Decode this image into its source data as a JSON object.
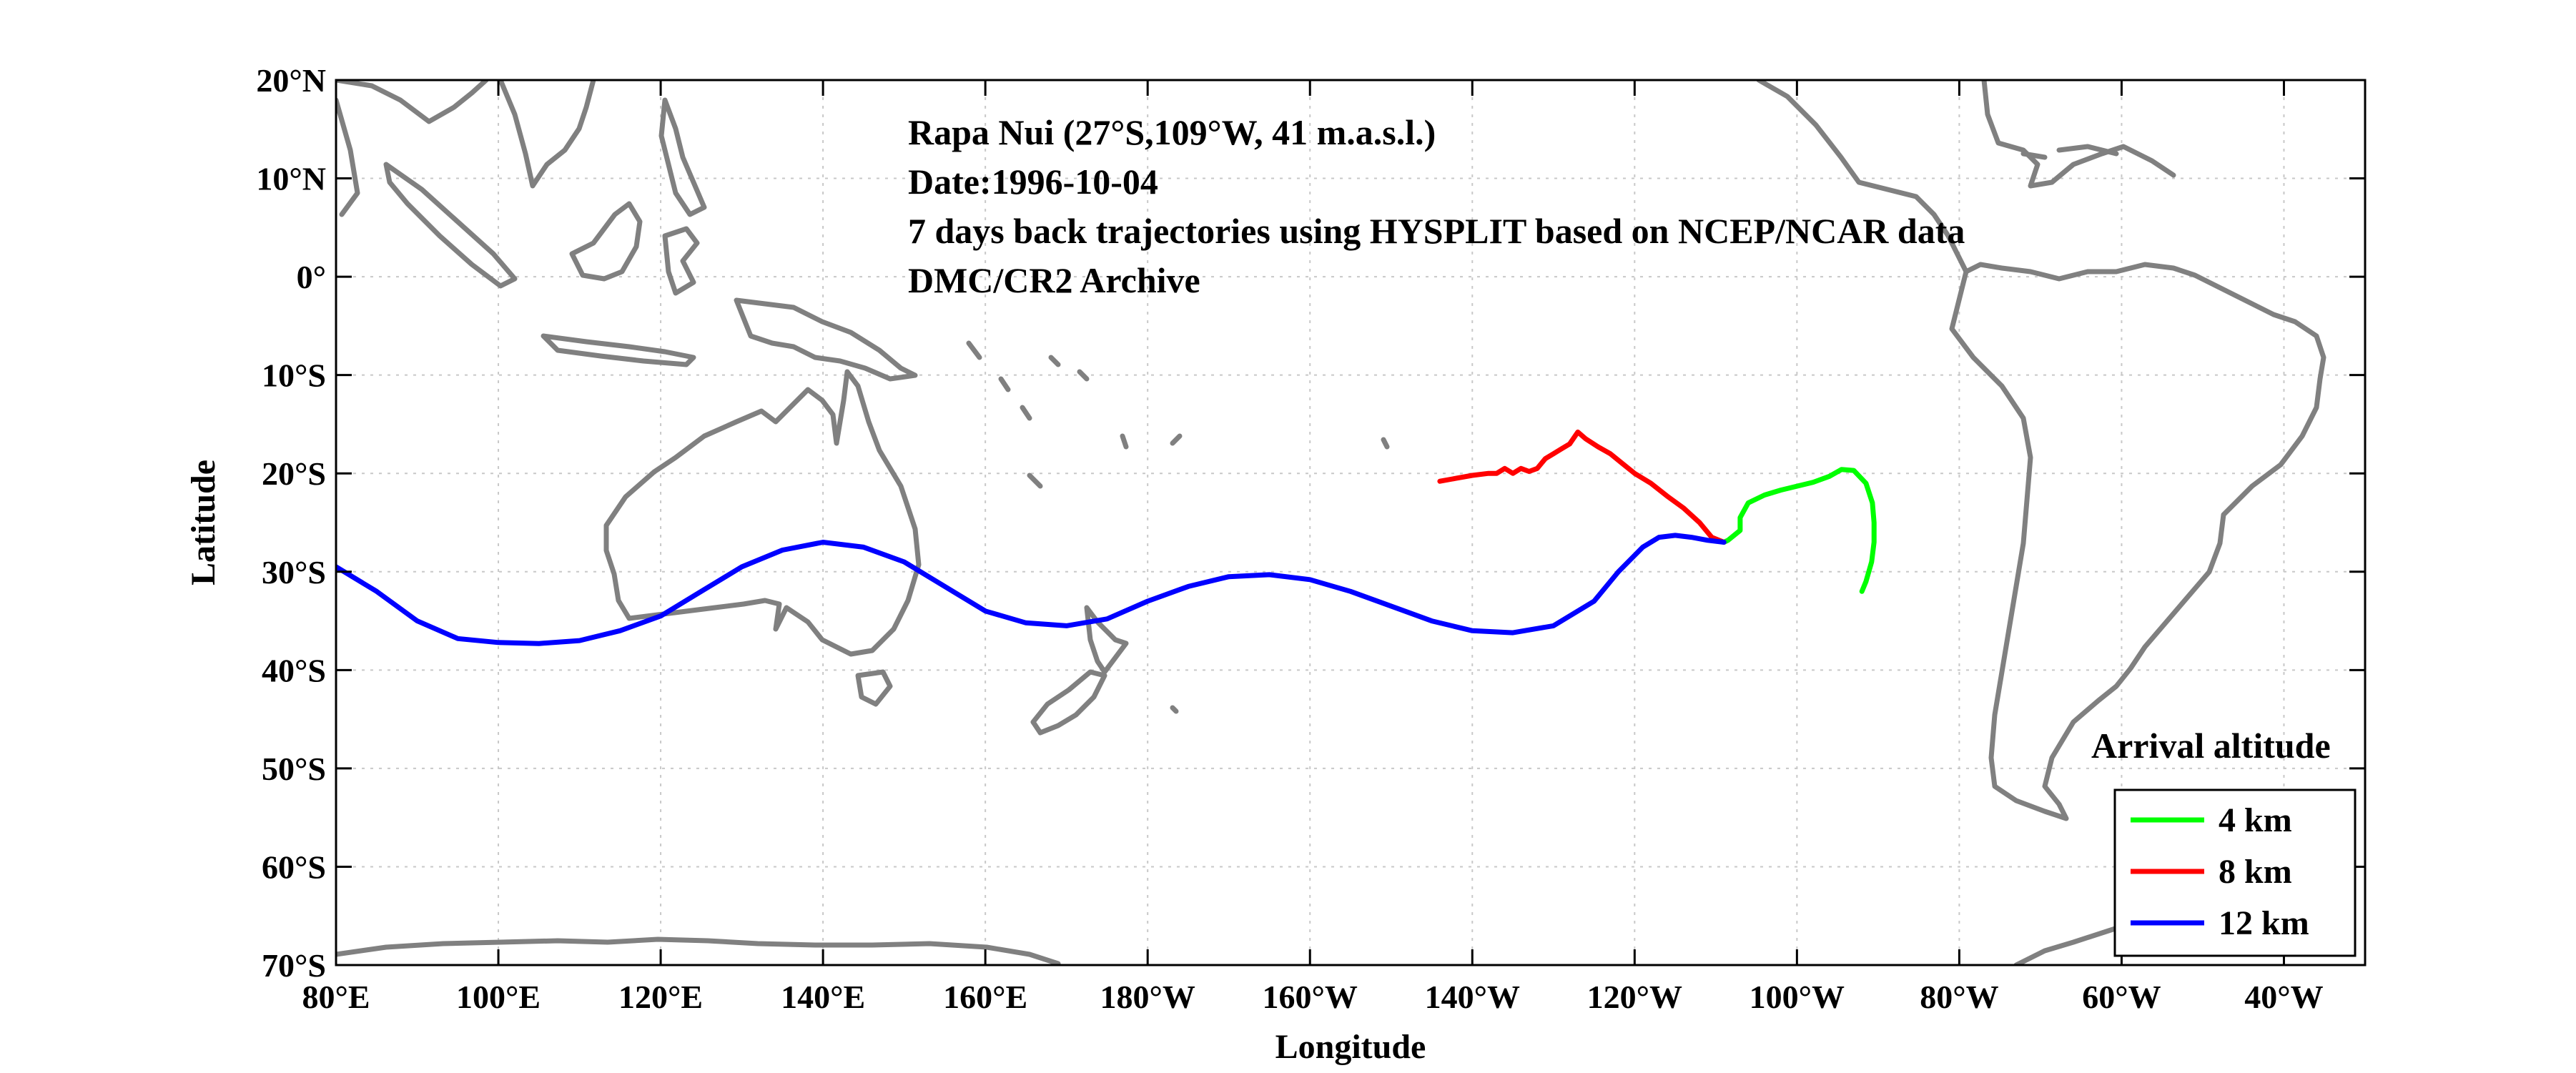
{
  "info": {
    "lines": [
      "Rapa Nui (27°S,109°W, 41 m.a.s.l.)",
      "Date:1996-10-04",
      "7 days back trajectories using HYSPLIT based on NCEP/NCAR data",
      "DMC/CR2 Archive"
    ]
  },
  "axes": {
    "xlabel": "Longitude",
    "ylabel": "Latitude",
    "x_ticks": [
      {
        "lon": 80,
        "label": "80°E"
      },
      {
        "lon": 100,
        "label": "100°E"
      },
      {
        "lon": 120,
        "label": "120°E"
      },
      {
        "lon": 140,
        "label": "140°E"
      },
      {
        "lon": 160,
        "label": "160°E"
      },
      {
        "lon": 180,
        "label": "180°W"
      },
      {
        "lon": 200,
        "label": "160°W"
      },
      {
        "lon": 220,
        "label": "140°W"
      },
      {
        "lon": 240,
        "label": "120°W"
      },
      {
        "lon": 260,
        "label": "100°W"
      },
      {
        "lon": 280,
        "label": "80°W"
      },
      {
        "lon": 300,
        "label": "60°W"
      },
      {
        "lon": 320,
        "label": "40°W"
      }
    ],
    "y_ticks": [
      {
        "lat": 20,
        "label": "20°N"
      },
      {
        "lat": 10,
        "label": "10°N"
      },
      {
        "lat": 0,
        "label": "0°"
      },
      {
        "lat": -10,
        "label": "10°S"
      },
      {
        "lat": -20,
        "label": "20°S"
      },
      {
        "lat": -30,
        "label": "30°S"
      },
      {
        "lat": -40,
        "label": "40°S"
      },
      {
        "lat": -50,
        "label": "50°S"
      },
      {
        "lat": -60,
        "label": "60°S"
      },
      {
        "lat": -70,
        "label": "70°S"
      }
    ],
    "lon_range": [
      80,
      330
    ],
    "lat_range": [
      -70,
      20
    ],
    "grid": true
  },
  "legend": {
    "title": "Arrival altitude",
    "placement": "bottom-right",
    "items": [
      {
        "label": "4 km",
        "color": "#00ff00"
      },
      {
        "label": "8 km",
        "color": "#ff0000"
      },
      {
        "label": "12 km",
        "color": "#0000ff"
      }
    ]
  },
  "colors": {
    "coastline": "#808080",
    "grid": "#c8c8c8",
    "background": "#ffffff"
  },
  "chart_data": {
    "type": "line",
    "title": "",
    "xlabel": "Longitude",
    "ylabel": "Latitude",
    "xlim": [
      80,
      330
    ],
    "ylim": [
      -70,
      20
    ],
    "series": [
      {
        "name": "4 km",
        "color": "#00ff00",
        "x": [
          251,
          251.5,
          253,
          253,
          254,
          256,
          258,
          260,
          262,
          264,
          265.5,
          267,
          268.5,
          269.3,
          269.5,
          269.5,
          269.2,
          268.5,
          268
        ],
        "y": [
          -27,
          -26.8,
          -25.8,
          -24.5,
          -23,
          -22.2,
          -21.7,
          -21.3,
          -20.9,
          -20.3,
          -19.6,
          -19.7,
          -21,
          -23,
          -25,
          -27,
          -29,
          -31,
          -32
        ]
      },
      {
        "name": "8 km",
        "color": "#ff0000",
        "x": [
          251,
          249.5,
          248,
          246,
          244,
          242,
          240,
          238.5,
          237,
          235.5,
          234,
          233,
          232,
          231,
          230,
          229,
          228,
          227,
          226,
          225,
          224,
          223,
          222,
          220,
          218,
          216
        ],
        "y": [
          -27,
          -26.5,
          -25,
          -23.5,
          -22.3,
          -21,
          -20,
          -19,
          -18,
          -17.3,
          -16.5,
          -15.8,
          -17,
          -17.5,
          -18,
          -18.5,
          -19.5,
          -19.8,
          -19.5,
          -20,
          -19.5,
          -20,
          -20,
          -20.2,
          -20.5,
          -20.8
        ]
      },
      {
        "name": "12 km",
        "color": "#0000ff",
        "x": [
          251,
          249,
          247,
          245,
          243,
          241,
          238,
          235,
          230,
          225,
          220,
          215,
          210,
          205,
          200,
          195,
          190,
          185,
          180,
          175,
          170,
          165,
          160,
          155,
          150,
          145,
          140,
          135,
          130,
          125,
          120,
          115,
          110,
          105,
          100,
          95,
          90,
          85,
          80
        ],
        "y": [
          -27,
          -26.8,
          -26.5,
          -26.3,
          -26.5,
          -27.5,
          -30,
          -33,
          -35.5,
          -36.2,
          -36,
          -35,
          -33.5,
          -32,
          -30.8,
          -30.3,
          -30.5,
          -31.5,
          -33,
          -34.8,
          -35.5,
          -35.2,
          -34,
          -31.5,
          -29,
          -27.5,
          -27,
          -27.8,
          -29.5,
          -32,
          -34.5,
          -36,
          -37,
          -37.3,
          -37.2,
          -36.8,
          -35,
          -32,
          -29.5
        ]
      }
    ]
  }
}
